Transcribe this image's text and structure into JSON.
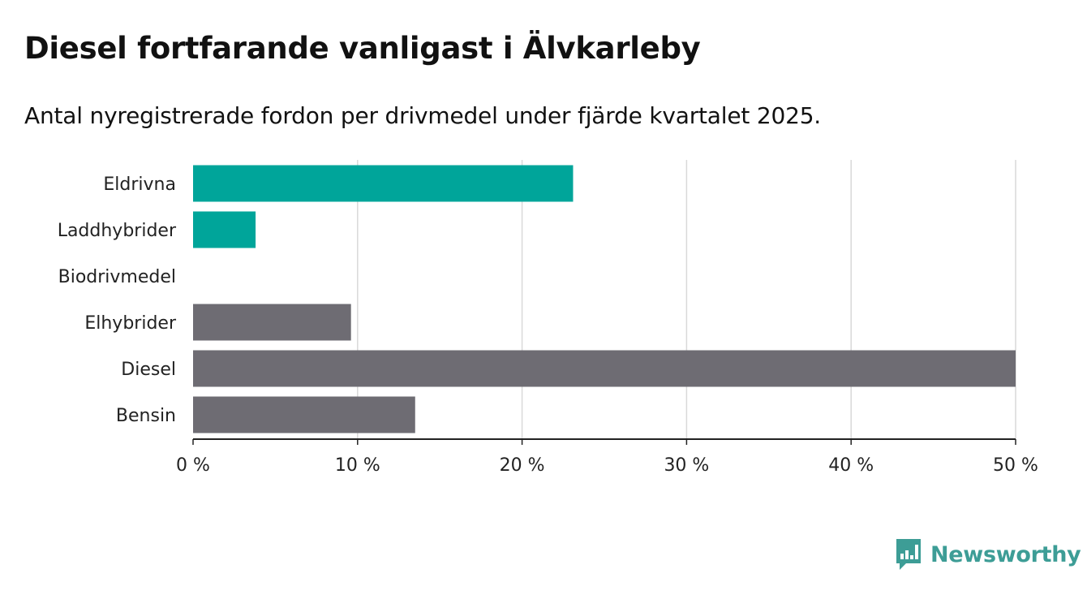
{
  "title": "Diesel fortfarande vanligast i Älvkarleby",
  "subtitle": "Antal nyregistrerade fordon per drivmedel under fjärde kvartalet 2025.",
  "brand": {
    "name": "Newsworthy",
    "color": "#3d9d96",
    "icon": "newsworthy-logo-icon"
  },
  "chart_data": {
    "type": "bar",
    "orientation": "horizontal",
    "categories": [
      "Eldrivna",
      "Laddhybrider",
      "Biodrivmedel",
      "Elhybrider",
      "Diesel",
      "Bensin"
    ],
    "values": [
      23.1,
      3.8,
      0,
      9.6,
      50,
      13.5
    ],
    "colors": [
      "#00a59a",
      "#00a59a",
      "#00a59a",
      "#6e6c73",
      "#6e6c73",
      "#6e6c73"
    ],
    "xlim": [
      0,
      50
    ],
    "xticks": [
      0,
      10,
      20,
      30,
      40,
      50
    ],
    "tick_labels": [
      "0 %",
      "10 %",
      "20 %",
      "30 %",
      "40 %",
      "50 %"
    ],
    "xlabel": "",
    "ylabel": "",
    "grid": "vertical"
  }
}
